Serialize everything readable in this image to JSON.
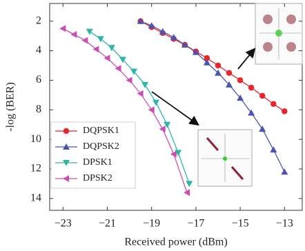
{
  "chart_data": {
    "type": "line",
    "x_label": "Received power (dBm)",
    "y_label": "-log (BER)",
    "xlim": [
      -23.6,
      -12.2
    ],
    "ylim": [
      0.8,
      14.8
    ],
    "y_inverted": true,
    "xticks": [
      {
        "value": -23,
        "label": "−23"
      },
      {
        "value": -21,
        "label": "−21"
      },
      {
        "value": -19,
        "label": "−19"
      },
      {
        "value": -17,
        "label": "−17"
      },
      {
        "value": -15,
        "label": "−15"
      },
      {
        "value": -13,
        "label": "−13"
      }
    ],
    "yticks": [
      2,
      4,
      6,
      8,
      10,
      12,
      14
    ],
    "legend": "left",
    "series": [
      {
        "name": "DQPSK1",
        "color": "#e8252a",
        "marker": "circle",
        "x": [
          -19.5,
          -19,
          -18.5,
          -18,
          -17.5,
          -17,
          -16.5,
          -16,
          -15.5,
          -15,
          -14.5,
          -14,
          -13.5,
          -13
        ],
        "values": [
          2.0,
          2.4,
          2.8,
          3.2,
          3.6,
          4.05,
          4.5,
          5.0,
          5.5,
          6.0,
          6.5,
          7.05,
          7.6,
          8.1
        ]
      },
      {
        "name": "DQPSK2",
        "color": "#4a55b0",
        "marker": "triangle-up",
        "x": [
          -19.5,
          -19,
          -18.5,
          -18,
          -17.5,
          -17,
          -16.5,
          -16,
          -15.5,
          -15,
          -14.5,
          -14,
          -13.5,
          -13
        ],
        "values": [
          2.0,
          2.3,
          2.7,
          3.1,
          3.6,
          4.1,
          4.8,
          5.5,
          6.3,
          7.2,
          8.2,
          9.3,
          10.7,
          12.2
        ]
      },
      {
        "name": "DPSK1",
        "color": "#2db5a8",
        "marker": "triangle-down",
        "x": [
          -21.8,
          -21.3,
          -20.8,
          -20.3,
          -19.8,
          -19.3,
          -18.8,
          -18.3,
          -17.8,
          -17.3
        ],
        "values": [
          2.7,
          3.2,
          3.8,
          4.6,
          5.4,
          6.3,
          7.5,
          9.0,
          10.9,
          13.0
        ]
      },
      {
        "name": "DPSK2",
        "color": "#c850b0",
        "marker": "triangle-left",
        "x": [
          -23,
          -22.5,
          -22,
          -21.5,
          -21,
          -20.5,
          -20,
          -19.5,
          -19,
          -18.5,
          -18,
          -17.4
        ],
        "values": [
          2.5,
          2.9,
          3.3,
          3.9,
          4.5,
          5.2,
          6.0,
          6.9,
          8.0,
          9.3,
          11.0,
          13.6
        ]
      }
    ]
  }
}
